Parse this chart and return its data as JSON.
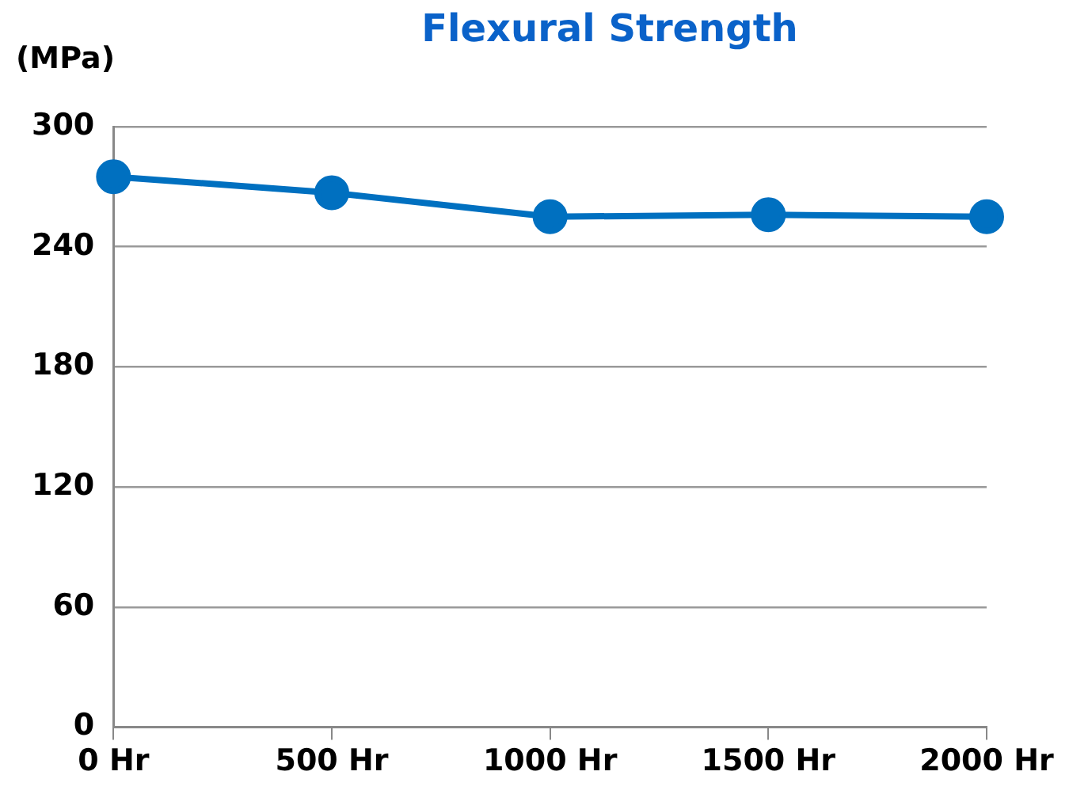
{
  "chart_data": {
    "type": "line",
    "title": "Flexural Strength",
    "ylabel": "(MPa)",
    "categories": [
      "0 Hr",
      "500 Hr",
      "1000 Hr",
      "1500 Hr",
      "2000 Hr"
    ],
    "series": [
      {
        "color": "#0070c0",
        "values": [
          275,
          267,
          255,
          256,
          255
        ]
      }
    ],
    "ylim": [
      0,
      300
    ],
    "yticks": [
      0,
      60,
      120,
      180,
      240,
      300
    ],
    "grid": "y",
    "legend": false,
    "marker": "circle",
    "line_style": "solid"
  }
}
